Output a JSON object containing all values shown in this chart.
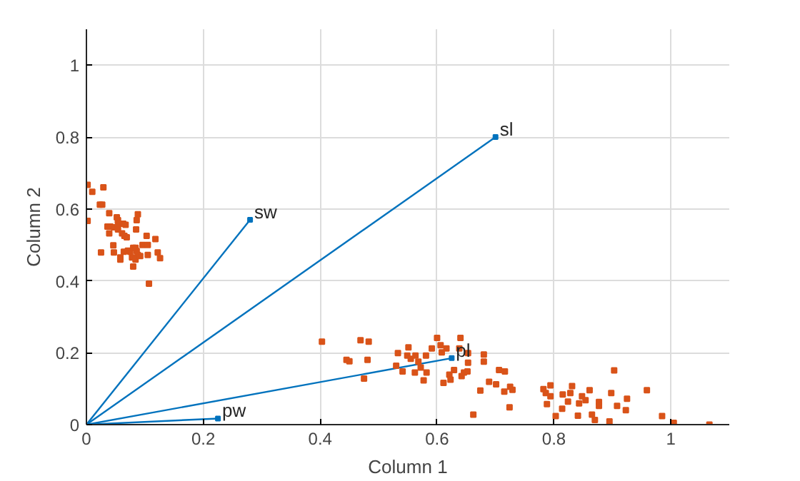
{
  "chart_data": {
    "type": "scatter",
    "xlabel": "Column 1",
    "ylabel": "Column 2",
    "xlim": [
      0,
      1.1
    ],
    "ylim": [
      0,
      1.1
    ],
    "xticks": [
      0,
      0.2,
      0.4,
      0.6,
      0.8,
      1
    ],
    "yticks": [
      0,
      0.2,
      0.4,
      0.6,
      0.8,
      1
    ],
    "grid": true,
    "marker": "square",
    "series": [
      {
        "name": "sl",
        "type": "line",
        "color": "#0072bd",
        "x": [
          0,
          0.7
        ],
        "values": [
          0,
          0.8
        ]
      },
      {
        "name": "sw",
        "type": "line",
        "color": "#0072bd",
        "x": [
          0,
          0.28
        ],
        "values": [
          0,
          0.57
        ]
      },
      {
        "name": "pl",
        "type": "line",
        "color": "#0072bd",
        "x": [
          0,
          0.625
        ],
        "values": [
          0,
          0.185
        ]
      },
      {
        "name": "pw",
        "type": "line",
        "color": "#0072bd",
        "x": [
          0,
          0.225
        ],
        "values": [
          0,
          0.017
        ]
      },
      {
        "color": "#d95319",
        "x": [
          0.002,
          0.01,
          0.029,
          0.023,
          0.027,
          0.002,
          0.039,
          0.036,
          0.041,
          0.047,
          0.052,
          0.054,
          0.054,
          0.063,
          0.067,
          0.039,
          0.054,
          0.061,
          0.065,
          0.069,
          0.088,
          0.086,
          0.085,
          0.086,
          0.071,
          0.064,
          0.075,
          0.08,
          0.084,
          0.088,
          0.078,
          0.058,
          0.046,
          0.025,
          0.047,
          0.084,
          0.08,
          0.058,
          0.103,
          0.096,
          0.105,
          0.118,
          0.105,
          0.092,
          0.122,
          0.126,
          0.107,
          0.403,
          0.445,
          0.45,
          0.469,
          0.483,
          0.475,
          0.481,
          0.533,
          0.53,
          0.541,
          0.551,
          0.549,
          0.555,
          0.563,
          0.562,
          0.568,
          0.572,
          0.577,
          0.581,
          0.582,
          0.591,
          0.6,
          0.606,
          0.608,
          0.611,
          0.616,
          0.621,
          0.623,
          0.629,
          0.64,
          0.638,
          0.642,
          0.646,
          0.652,
          0.653,
          0.662,
          0.653,
          0.68,
          0.68,
          0.674,
          0.689,
          0.701,
          0.706,
          0.716,
          0.715,
          0.724,
          0.725,
          0.729,
          0.782,
          0.786,
          0.794,
          0.794,
          0.788,
          0.803,
          0.814,
          0.815,
          0.824,
          0.828,
          0.831,
          0.841,
          0.843,
          0.848,
          0.854,
          0.861,
          0.865,
          0.87,
          0.877,
          0.877,
          0.895,
          0.898,
          0.903,
          0.908,
          0.923,
          0.925,
          0.959,
          0.985,
          1.005,
          1.066
        ],
        "values": [
          0.667,
          0.648,
          0.66,
          0.612,
          0.612,
          0.567,
          0.588,
          0.551,
          0.551,
          0.549,
          0.577,
          0.569,
          0.559,
          0.559,
          0.556,
          0.532,
          0.543,
          0.532,
          0.525,
          0.521,
          0.585,
          0.569,
          0.543,
          0.483,
          0.484,
          0.481,
          0.481,
          0.492,
          0.492,
          0.472,
          0.465,
          0.465,
          0.499,
          0.479,
          0.479,
          0.459,
          0.44,
          0.459,
          0.525,
          0.5,
          0.5,
          0.516,
          0.472,
          0.469,
          0.479,
          0.463,
          0.392,
          0.231,
          0.18,
          0.176,
          0.235,
          0.231,
          0.128,
          0.18,
          0.199,
          0.164,
          0.148,
          0.215,
          0.192,
          0.183,
          0.192,
          0.145,
          0.175,
          0.159,
          0.123,
          0.192,
          0.145,
          0.212,
          0.241,
          0.221,
          0.201,
          0.116,
          0.212,
          0.139,
          0.125,
          0.152,
          0.241,
          0.212,
          0.135,
          0.145,
          0.148,
          0.172,
          0.028,
          0.199,
          0.195,
          0.175,
          0.095,
          0.119,
          0.112,
          0.152,
          0.148,
          0.092,
          0.048,
          0.105,
          0.097,
          0.099,
          0.088,
          0.109,
          0.079,
          0.057,
          0.024,
          0.044,
          0.084,
          0.064,
          0.088,
          0.107,
          0.025,
          0.059,
          0.079,
          0.068,
          0.096,
          0.028,
          0.013,
          0.063,
          0.052,
          0.009,
          0.088,
          0.151,
          0.052,
          0.04,
          0.072,
          0.096,
          0.024,
          0.005,
          0.0
        ]
      }
    ]
  }
}
